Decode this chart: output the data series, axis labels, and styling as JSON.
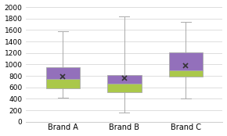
{
  "categories": [
    "Brand A",
    "Brand B",
    "Brand C"
  ],
  "boxes": [
    {
      "q1": 580,
      "median": 740,
      "q3": 950,
      "whisker_low": 420,
      "whisker_high": 1580,
      "mean": 790
    },
    {
      "q1": 520,
      "median": 670,
      "q3": 810,
      "whisker_low": 160,
      "whisker_high": 1840,
      "mean": 760
    },
    {
      "q1": 790,
      "median": 890,
      "q3": 1210,
      "whisker_low": 400,
      "whisker_high": 1740,
      "mean": 980
    }
  ],
  "color_lower": "#aac84a",
  "color_upper": "#9370bb",
  "whisker_color": "#aaaaaa",
  "box_edge_color": "#aaaaaa",
  "mean_marker": "x",
  "mean_color": "#333333",
  "bg_color": "#ffffff",
  "grid_color": "#d8d8d8",
  "ylim": [
    0,
    2000
  ],
  "yticks": [
    0,
    200,
    400,
    600,
    800,
    1000,
    1200,
    1400,
    1600,
    1800,
    2000
  ],
  "xlabel_fontsize": 7,
  "tick_fontsize": 6.5,
  "box_width": 0.55
}
